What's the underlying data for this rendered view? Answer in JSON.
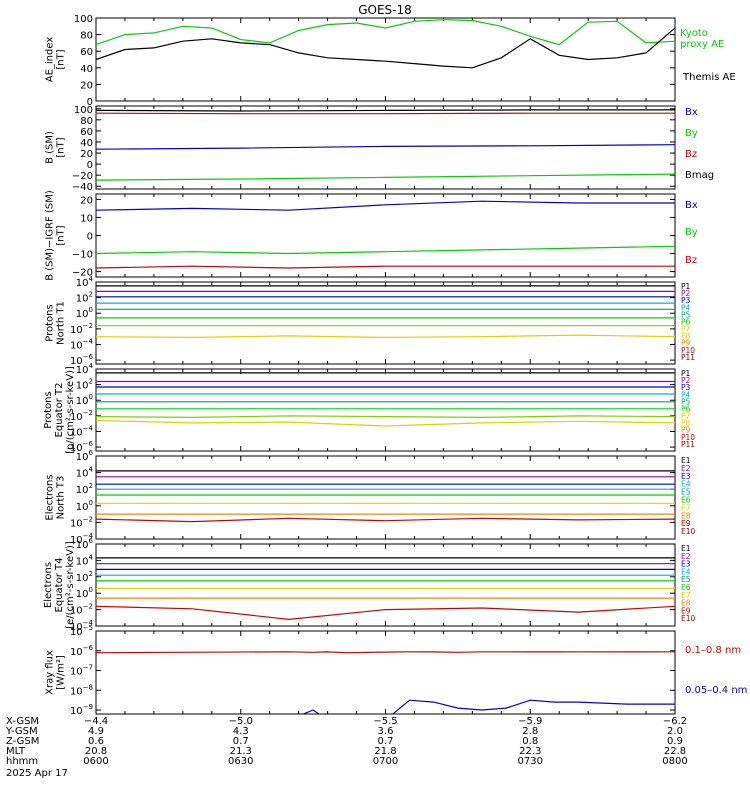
{
  "title": "GOES-18",
  "colors": {
    "black": "#000000",
    "blue": "#0000d0",
    "green": "#00d000",
    "red": "#d00000",
    "cyan": "#00b0d0",
    "yellow": "#e0d000",
    "orange": "#ff8000",
    "purple": "#a000a0",
    "magenta": "#d000d0",
    "darkred": "#a00000",
    "teal": "#00a080",
    "lime": "#80d000"
  },
  "chart_data": [
    {
      "type": "line",
      "ylabel": [
        "AE_index",
        "[nT]"
      ],
      "ylim": [
        0,
        100
      ],
      "yticks": [
        {
          "v": 0,
          "label": "0"
        },
        {
          "v": 20,
          "label": "20"
        },
        {
          "v": 40,
          "label": "40"
        },
        {
          "v": 60,
          "label": "60"
        },
        {
          "v": 80,
          "label": "80"
        },
        {
          "v": 100,
          "label": "100"
        }
      ],
      "x": [
        0,
        6,
        12,
        18,
        24,
        30,
        36,
        42,
        48,
        54,
        60,
        66,
        72,
        78,
        84,
        90,
        96,
        102,
        108,
        114,
        120
      ],
      "series": [
        {
          "name": "Kyoto proxy AE",
          "label_lines": [
            "Kyoto",
            "proxy AE"
          ],
          "color": "green",
          "values": [
            68,
            80,
            82,
            90,
            88,
            74,
            70,
            85,
            92,
            94,
            88,
            96,
            98,
            97,
            90,
            78,
            68,
            95,
            96,
            70,
            72
          ]
        },
        {
          "name": "Themis AE",
          "label_lines": [
            "Themis AE"
          ],
          "color": "black",
          "values": [
            50,
            62,
            64,
            72,
            75,
            70,
            68,
            58,
            52,
            50,
            48,
            45,
            42,
            40,
            52,
            75,
            55,
            50,
            52,
            58,
            88
          ]
        }
      ]
    },
    {
      "type": "line",
      "ylabel": [
        "B (SM)",
        "[nT]"
      ],
      "ylim": [
        -45,
        105
      ],
      "yticks": [
        {
          "v": -40,
          "label": "−40"
        },
        {
          "v": -20,
          "label": "−20"
        },
        {
          "v": 0,
          "label": "0"
        },
        {
          "v": 20,
          "label": "20"
        },
        {
          "v": 40,
          "label": "40"
        },
        {
          "v": 60,
          "label": "60"
        },
        {
          "v": 80,
          "label": "80"
        },
        {
          "v": 100,
          "label": "100"
        }
      ],
      "x": [
        0,
        30,
        60,
        90,
        120
      ],
      "series": [
        {
          "name": "Bx",
          "color": "blue",
          "values": [
            27,
            29,
            32,
            33,
            35
          ]
        },
        {
          "name": "By",
          "color": "green",
          "values": [
            -29,
            -27,
            -24,
            -21,
            -18
          ]
        },
        {
          "name": "Bz",
          "color": "red",
          "values": [
            92,
            91,
            91,
            92,
            92
          ]
        },
        {
          "name": "Bmag",
          "color": "black",
          "values": [
            97,
            96,
            97,
            98,
            98
          ]
        }
      ]
    },
    {
      "type": "line",
      "ylabel": [
        "B (SM)−IGRF (SM)",
        "[nT]"
      ],
      "ylim": [
        -23,
        23
      ],
      "yticks": [
        {
          "v": -20,
          "label": "−20"
        },
        {
          "v": -10,
          "label": "−10"
        },
        {
          "v": 0,
          "label": "0"
        },
        {
          "v": 10,
          "label": "10"
        },
        {
          "v": 20,
          "label": "20"
        }
      ],
      "x": [
        0,
        20,
        40,
        60,
        80,
        100,
        120
      ],
      "series": [
        {
          "name": "Bx",
          "color": "blue",
          "values": [
            14,
            15,
            14,
            17,
            19,
            18,
            18
          ]
        },
        {
          "name": "By",
          "color": "green",
          "values": [
            -10,
            -9,
            -10,
            -9,
            -8,
            -7,
            -6
          ]
        },
        {
          "name": "Bz",
          "color": "red",
          "values": [
            -18,
            -17,
            -18,
            -17,
            -17,
            -17,
            -17
          ]
        }
      ]
    },
    {
      "type": "line",
      "scale": "log",
      "ylabel": [
        "Protons",
        "North T1"
      ],
      "ylim_exp": [
        -6.5,
        4
      ],
      "ytick_exps": [
        -6,
        -4,
        -2,
        0,
        2,
        4
      ],
      "channel_labels": [
        "P1",
        "P2",
        "P3",
        "P4",
        "P5",
        "P6",
        "P7",
        "P8",
        "P9",
        "P10",
        "P11"
      ],
      "x": [
        0,
        20,
        40,
        60,
        80,
        100,
        120
      ],
      "series": [
        {
          "name": "P1",
          "color": "black",
          "values": [
            3.5,
            3.5,
            3.5,
            3.5,
            3.5,
            3.5,
            3.5
          ]
        },
        {
          "name": "P2",
          "color": "purple",
          "values": [
            2.8,
            2.8,
            2.8,
            2.8,
            2.8,
            2.8,
            2.8
          ]
        },
        {
          "name": "P3",
          "color": "blue",
          "values": [
            2.1,
            2.1,
            2.1,
            2.1,
            2.1,
            2.1,
            2.1
          ]
        },
        {
          "name": "P4",
          "color": "cyan",
          "values": [
            1.3,
            1.3,
            1.3,
            1.3,
            1.3,
            1.3,
            1.3
          ]
        },
        {
          "name": "P5",
          "color": "teal",
          "values": [
            0.5,
            0.5,
            0.5,
            0.5,
            0.5,
            0.5,
            0.5
          ]
        },
        {
          "name": "P6",
          "color": "green",
          "values": [
            -0.6,
            -0.6,
            -0.6,
            -0.6,
            -0.6,
            -0.6,
            -0.6
          ]
        },
        {
          "name": "P7",
          "color": "lime",
          "values": [
            -1.6,
            -1.6,
            -1.6,
            -1.6,
            -1.6,
            -1.6,
            -1.6
          ]
        },
        {
          "name": "P8",
          "color": "yellow",
          "values": [
            -3.0,
            -3.1,
            -2.9,
            -3.1,
            -3.0,
            -2.8,
            -3.0
          ]
        }
      ],
      "series_label_colors": [
        "black",
        "purple",
        "blue",
        "cyan",
        "teal",
        "green",
        "yellow",
        "yellow",
        "orange",
        "red",
        "darkred"
      ]
    },
    {
      "type": "line",
      "scale": "log",
      "ylabel": [
        "Protons",
        "Equator T2",
        "[p/(cm²-s-sr-keV)]"
      ],
      "ylim_exp": [
        -6.5,
        4
      ],
      "ytick_exps": [
        -6,
        -4,
        -2,
        0,
        2,
        4
      ],
      "channel_labels": [
        "P1",
        "P2",
        "P3",
        "P4",
        "P5",
        "P6",
        "P7",
        "P8",
        "P9",
        "P10",
        "P11"
      ],
      "x": [
        0,
        20,
        40,
        60,
        80,
        100,
        120
      ],
      "series": [
        {
          "name": "P1",
          "color": "black",
          "values": [
            3.5,
            3.5,
            3.5,
            3.5,
            3.5,
            3.5,
            3.5
          ]
        },
        {
          "name": "P2",
          "color": "purple",
          "values": [
            2.4,
            2.4,
            2.4,
            2.4,
            2.4,
            2.4,
            2.4
          ]
        },
        {
          "name": "P3",
          "color": "blue",
          "values": [
            1.7,
            1.7,
            1.7,
            1.7,
            1.7,
            1.7,
            1.7
          ]
        },
        {
          "name": "P4",
          "color": "cyan",
          "values": [
            0.8,
            0.8,
            0.8,
            0.8,
            0.8,
            0.8,
            0.8
          ]
        },
        {
          "name": "P5",
          "color": "teal",
          "values": [
            -0.2,
            -0.2,
            -0.2,
            -0.2,
            -0.2,
            -0.2,
            -0.2
          ]
        },
        {
          "name": "P6",
          "color": "green",
          "values": [
            -1.1,
            -1.1,
            -1.1,
            -1.1,
            -1.1,
            -1.1,
            -1.1
          ]
        },
        {
          "name": "P7",
          "color": "lime",
          "values": [
            -2.1,
            -2.2,
            -2.0,
            -2.1,
            -2.2,
            -2.0,
            -2.1
          ]
        },
        {
          "name": "P8",
          "color": "yellow",
          "values": [
            -2.6,
            -2.9,
            -2.8,
            -3.3,
            -2.9,
            -2.7,
            -2.9
          ]
        }
      ],
      "series_label_colors": [
        "black",
        "purple",
        "blue",
        "cyan",
        "teal",
        "green",
        "yellow",
        "yellow",
        "orange",
        "red",
        "darkred"
      ]
    },
    {
      "type": "line",
      "scale": "log",
      "ylabel": [
        "Electrons",
        "North T3"
      ],
      "ylim_exp": [
        -4,
        6
      ],
      "ytick_exps": [
        -4,
        -2,
        0,
        2,
        4,
        6
      ],
      "channel_labels": [
        "E1",
        "E2",
        "E3",
        "E4",
        "E5",
        "E6",
        "E7",
        "E8",
        "E9",
        "E10"
      ],
      "x": [
        0,
        20,
        40,
        60,
        80,
        100,
        120
      ],
      "series": [
        {
          "name": "E1",
          "color": "black",
          "values": [
            4.2,
            4.2,
            4.2,
            4.2,
            4.2,
            4.2,
            4.2
          ]
        },
        {
          "name": "E2",
          "color": "purple",
          "values": [
            3.5,
            3.5,
            3.5,
            3.5,
            3.5,
            3.5,
            3.5
          ]
        },
        {
          "name": "E3",
          "color": "blue",
          "values": [
            2.6,
            2.6,
            2.6,
            2.6,
            2.6,
            2.6,
            2.6
          ]
        },
        {
          "name": "E4",
          "color": "cyan",
          "values": [
            2.0,
            2.0,
            2.0,
            2.0,
            2.0,
            2.0,
            2.0
          ]
        },
        {
          "name": "E5",
          "color": "green",
          "values": [
            1.3,
            1.3,
            1.3,
            1.3,
            1.3,
            1.3,
            1.3
          ]
        },
        {
          "name": "E6",
          "color": "yellow",
          "values": [
            0.3,
            0.3,
            0.3,
            0.3,
            0.3,
            0.3,
            0.3
          ]
        },
        {
          "name": "E7",
          "color": "orange",
          "values": [
            -1.0,
            -1.0,
            -1.0,
            -1.0,
            -1.0,
            -1.0,
            -1.0
          ]
        },
        {
          "name": "E8",
          "color": "red",
          "values": [
            -1.6,
            -1.9,
            -1.5,
            -1.8,
            -1.5,
            -1.7,
            -1.6
          ]
        }
      ],
      "series_label_colors": [
        "black",
        "purple",
        "blue",
        "cyan",
        "teal",
        "green",
        "yellow",
        "orange",
        "red",
        "darkred"
      ]
    },
    {
      "type": "line",
      "scale": "log",
      "ylabel": [
        "Electrons",
        "Equator T4",
        "[e/(cm²-s-sr-keV)]"
      ],
      "ylim_exp": [
        -4,
        6
      ],
      "ytick_exps": [
        -4,
        -2,
        0,
        2,
        4,
        6
      ],
      "channel_labels": [
        "E1",
        "E2",
        "E3",
        "E4",
        "E5",
        "E6",
        "E7",
        "E8",
        "E9",
        "E10"
      ],
      "x": [
        0,
        20,
        40,
        60,
        80,
        100,
        120
      ],
      "series": [
        {
          "name": "E1",
          "color": "black",
          "values": [
            4.3,
            4.3,
            4.3,
            4.3,
            4.3,
            4.3,
            4.3
          ]
        },
        {
          "name": "E2",
          "color": "purple",
          "values": [
            3.6,
            3.6,
            3.6,
            3.6,
            3.6,
            3.6,
            3.6
          ]
        },
        {
          "name": "E3",
          "color": "blue",
          "values": [
            2.9,
            2.9,
            2.9,
            2.9,
            2.9,
            2.9,
            2.9
          ]
        },
        {
          "name": "E4",
          "color": "cyan",
          "values": [
            2.2,
            2.2,
            2.2,
            2.2,
            2.2,
            2.2,
            2.2
          ]
        },
        {
          "name": "E5",
          "color": "green",
          "values": [
            1.5,
            1.5,
            1.5,
            1.5,
            1.5,
            1.5,
            1.5
          ]
        },
        {
          "name": "E6",
          "color": "yellow",
          "values": [
            0.6,
            0.6,
            0.6,
            0.6,
            0.6,
            0.6,
            0.6
          ]
        },
        {
          "name": "E7",
          "color": "orange",
          "values": [
            -0.6,
            -0.6,
            -0.6,
            -0.6,
            -0.6,
            -0.6,
            -0.6
          ]
        },
        {
          "name": "E8",
          "color": "red",
          "values": [
            -1.6,
            -1.9,
            -3.2,
            -2.0,
            -1.8,
            -2.3,
            -1.6
          ]
        }
      ],
      "series_label_colors": [
        "black",
        "purple",
        "blue",
        "cyan",
        "teal",
        "green",
        "yellow",
        "orange",
        "red",
        "darkred"
      ]
    },
    {
      "type": "line",
      "scale": "log",
      "ylabel": [
        "Xray flux",
        "[W/m²]"
      ],
      "ylim_exp": [
        -9.2,
        -5
      ],
      "ytick_exps": [
        -9,
        -8,
        -7,
        -6,
        -5
      ],
      "x": [
        0,
        40,
        45,
        48,
        52,
        60,
        65,
        70,
        75,
        80,
        85,
        90,
        95,
        100,
        110,
        120
      ],
      "series": [
        {
          "name": "0.1–0.8 nm",
          "color": "red",
          "values": [
            -6.1,
            -6.05,
            -6.08,
            -6.06,
            -6.1,
            -6.07,
            -6.05,
            -6.06,
            -6.08,
            -6.05,
            -6.05,
            -6.06,
            -6.06,
            -6.05,
            -6.06,
            -6.05
          ]
        },
        {
          "name": "0.05–0.4 nm",
          "color": "blue",
          "values": [
            -9.5,
            -9.5,
            -9.0,
            -9.5,
            -9.5,
            -9.5,
            -8.5,
            -8.6,
            -8.9,
            -9.0,
            -8.9,
            -8.5,
            -8.6,
            -8.6,
            -8.7,
            -8.7
          ]
        }
      ]
    }
  ],
  "xaxis": {
    "row_labels": [
      "X-GSM",
      "Y-GSM",
      "Z-GSM",
      "MLT",
      "hhmm"
    ],
    "ticks": [
      {
        "t": 0,
        "values": [
          "−4.4",
          "4.9",
          "0.6",
          "20.8",
          "0600"
        ]
      },
      {
        "t": 30,
        "values": [
          "−5.0",
          "4.3",
          "0.7",
          "21.3",
          "0630"
        ]
      },
      {
        "t": 60,
        "values": [
          "−5.5",
          "3.6",
          "0.7",
          "21.8",
          "0700"
        ]
      },
      {
        "t": 90,
        "values": [
          "−5.9",
          "2.8",
          "0.8",
          "22.3",
          "0730"
        ]
      },
      {
        "t": 120,
        "values": [
          "−6.2",
          "2.0",
          "0.9",
          "22.8",
          "0800"
        ]
      }
    ],
    "date": "2025 Apr 17"
  }
}
